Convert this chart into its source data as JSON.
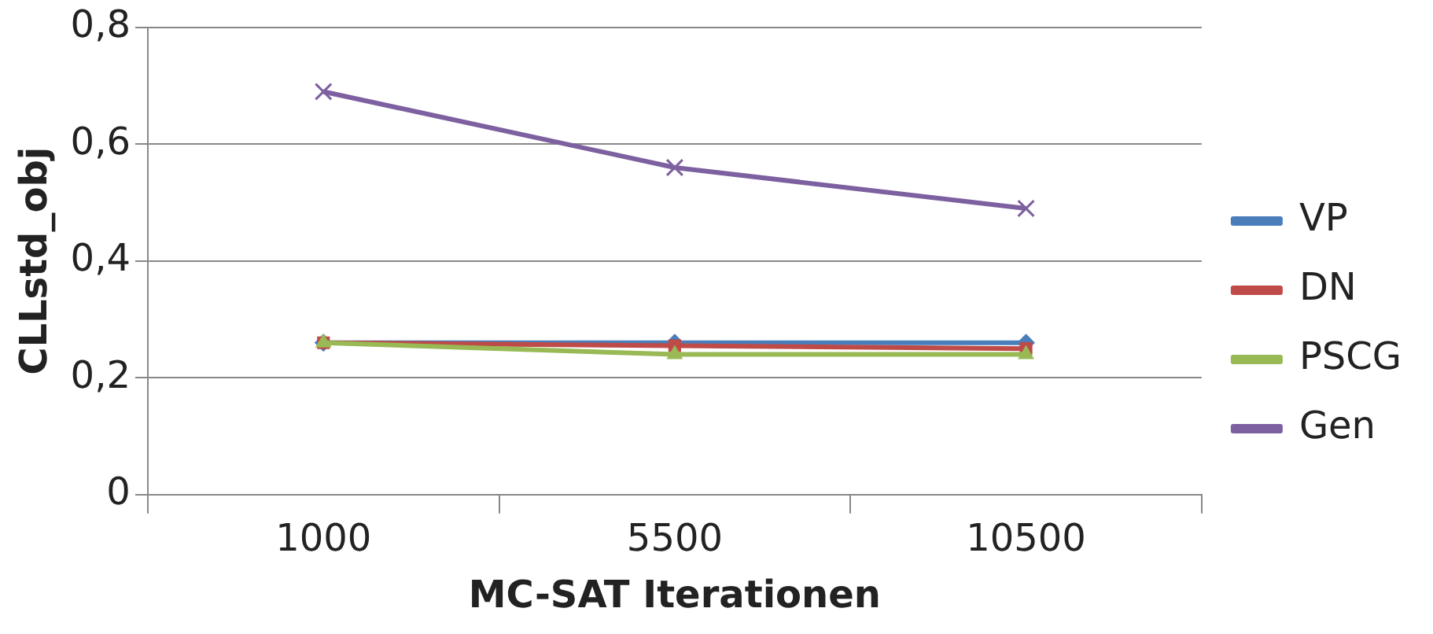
{
  "chart_data": {
    "type": "line",
    "xlabel": "MC-SAT Iterationen",
    "ylabel": "CLLstd_obj",
    "categories": [
      "1000",
      "5500",
      "10500"
    ],
    "series": [
      {
        "name": "VP",
        "color": "#4a7ebb",
        "marker": "diamond",
        "values": [
          0.26,
          0.26,
          0.26
        ]
      },
      {
        "name": "DN",
        "color": "#be4b48",
        "marker": "square",
        "values": [
          0.26,
          0.255,
          0.25
        ]
      },
      {
        "name": "PSCG",
        "color": "#98b954",
        "marker": "triangle",
        "values": [
          0.26,
          0.24,
          0.24
        ]
      },
      {
        "name": "Gen",
        "color": "#7d60a0",
        "marker": "cross",
        "values": [
          0.69,
          0.56,
          0.49
        ]
      }
    ],
    "ylim": [
      0,
      0.8
    ],
    "yticks": [
      {
        "value": 0,
        "label": "0"
      },
      {
        "value": 0.2,
        "label": "0,2"
      },
      {
        "value": 0.4,
        "label": "0,4"
      },
      {
        "value": 0.6,
        "label": "0,6"
      },
      {
        "value": 0.8,
        "label": "0,8"
      }
    ],
    "grid": "y",
    "legend": "right"
  }
}
